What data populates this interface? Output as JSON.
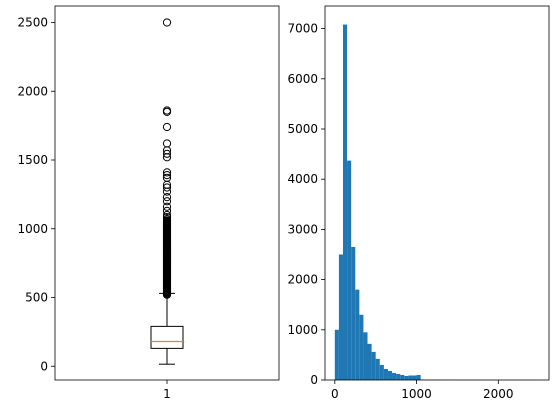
{
  "chart_data": [
    {
      "type": "box",
      "title": "",
      "xlabel": "",
      "ylabel": "",
      "categories": [
        "1"
      ],
      "ylim": [
        -100,
        2620
      ],
      "yticks": [
        0,
        500,
        1000,
        1500,
        2000,
        2500
      ],
      "box": {
        "whisker_low": 15,
        "q1": 130,
        "median": 180,
        "q3": 290,
        "whisker_high": 530
      },
      "outliers_dense_range": [
        520,
        1060
      ],
      "outliers": [
        1070,
        1085,
        1100,
        1130,
        1160,
        1200,
        1230,
        1270,
        1300,
        1320,
        1370,
        1390,
        1410,
        1520,
        1545,
        1570,
        1620,
        1740,
        1850,
        1860,
        2500
      ],
      "colors": {
        "box": "#000000",
        "median": "#ff7f0e"
      },
      "grid": false
    },
    {
      "type": "histogram",
      "title": "",
      "xlabel": "",
      "ylabel": "",
      "xlim": [
        -120,
        2620
      ],
      "ylim": [
        0,
        7450
      ],
      "xticks": [
        0,
        1000,
        2000
      ],
      "yticks": [
        0,
        1000,
        2000,
        3000,
        4000,
        5000,
        6000,
        7000
      ],
      "bin_start": 0,
      "bin_width": 50,
      "values": [
        1000,
        2500,
        7080,
        4370,
        2650,
        1800,
        1300,
        950,
        720,
        560,
        420,
        300,
        220,
        180,
        140,
        120,
        100,
        80,
        90,
        90,
        100,
        10,
        5,
        5,
        5,
        4,
        3,
        3,
        3,
        3,
        2,
        2,
        2,
        2,
        2,
        2,
        1,
        1,
        1,
        1,
        1,
        1,
        1,
        1,
        1,
        1,
        1,
        1,
        1,
        0
      ],
      "colors": {
        "bar": "#1f77b4"
      },
      "grid": false
    }
  ]
}
